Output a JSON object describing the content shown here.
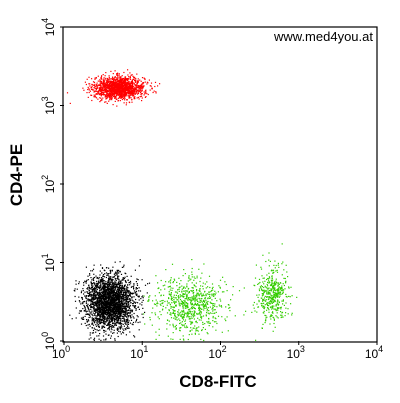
{
  "chart_data": {
    "type": "scatter",
    "title": "",
    "xlabel": "CD8-FITC",
    "ylabel": "CD4-PE",
    "x_scale": "log",
    "y_scale": "log",
    "xlim": [
      1,
      10000
    ],
    "ylim": [
      1,
      10000
    ],
    "x_ticks": [
      {
        "base": "10",
        "exp": "0"
      },
      {
        "base": "10",
        "exp": "1"
      },
      {
        "base": "10",
        "exp": "2"
      },
      {
        "base": "10",
        "exp": "3"
      },
      {
        "base": "10",
        "exp": "4"
      }
    ],
    "y_ticks": [
      {
        "base": "10",
        "exp": "0"
      },
      {
        "base": "10",
        "exp": "1"
      },
      {
        "base": "10",
        "exp": "2"
      },
      {
        "base": "10",
        "exp": "3"
      },
      {
        "base": "10",
        "exp": "4"
      }
    ],
    "grid": false,
    "annotations": [
      "www.med4you.at"
    ],
    "series": [
      {
        "color": "#ff0000",
        "count": 1600,
        "center": {
          "x": 5.0,
          "y": 1700
        },
        "spread_log10": {
          "x": 0.16,
          "y": 0.07
        }
      },
      {
        "color": "#000000",
        "count": 2600,
        "center": {
          "x": 3.8,
          "y": 3.2
        },
        "spread_log10": {
          "x": 0.16,
          "y": 0.17
        }
      },
      {
        "color": "#33cc00",
        "count": 750,
        "center": {
          "x": 40,
          "y": 3
        },
        "spread_log10": {
          "x": 0.22,
          "y": 0.18
        }
      },
      {
        "color": "#33cc00",
        "count": 450,
        "center": {
          "x": 450,
          "y": 4
        },
        "spread_log10": {
          "x": 0.1,
          "y": 0.17
        }
      }
    ]
  }
}
